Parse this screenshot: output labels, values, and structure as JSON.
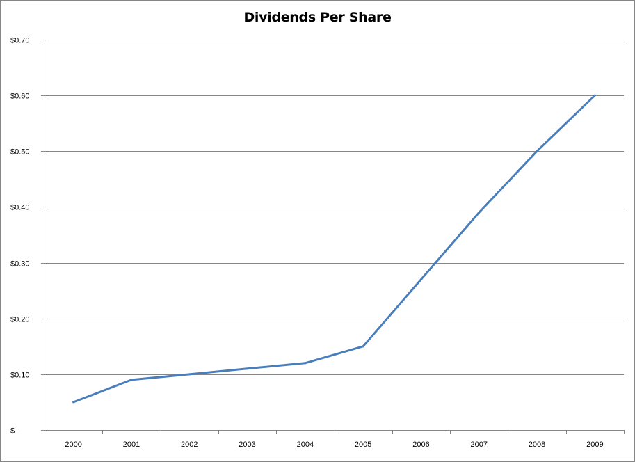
{
  "chart_data": {
    "type": "line",
    "title": "Dividends Per Share",
    "xlabel": "",
    "ylabel": "",
    "categories": [
      "2000",
      "2001",
      "2002",
      "2003",
      "2004",
      "2005",
      "2006",
      "2007",
      "2008",
      "2009"
    ],
    "series": [
      {
        "values": [
          0.05,
          0.09,
          0.1,
          0.11,
          0.12,
          0.15,
          0.27,
          0.39,
          0.5,
          0.6
        ]
      }
    ],
    "ylim": [
      0,
      0.7
    ],
    "yticks": [
      0,
      0.1,
      0.2,
      0.3,
      0.4,
      0.5,
      0.6,
      0.7
    ],
    "ytick_labels": [
      "$-",
      "$0.10",
      "$0.20",
      "$0.30",
      "$0.40",
      "$0.50",
      "$0.60",
      "$0.70"
    ],
    "grid": "horizontal major gridlines",
    "legend": "none",
    "colors": {
      "line": "#4A7EBB",
      "grid": "#868686",
      "axis": "#868686"
    }
  }
}
